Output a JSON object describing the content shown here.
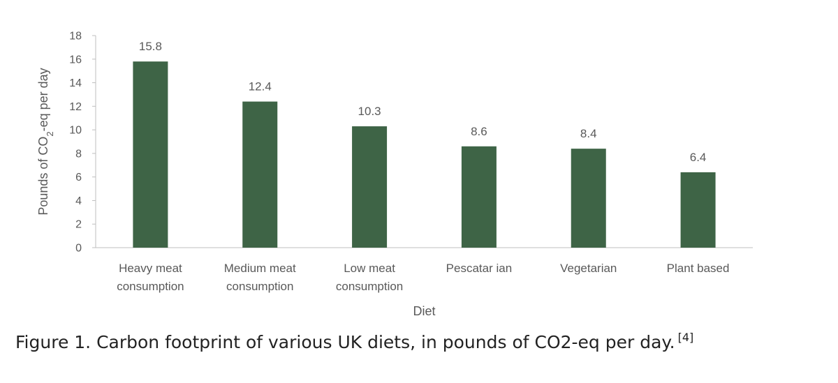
{
  "chart_data": {
    "type": "bar",
    "categories": [
      [
        "Heavy meat",
        "consumption"
      ],
      [
        "Medium meat",
        "consumption"
      ],
      [
        "Low meat",
        "consumption"
      ],
      [
        "Pescatar ian"
      ],
      [
        "Vegetarian"
      ],
      [
        "Plant based"
      ]
    ],
    "values": [
      15.8,
      12.4,
      10.3,
      8.6,
      8.4,
      6.4
    ],
    "data_labels": [
      "15.8",
      "12.4",
      "10.3",
      "8.6",
      "8.4",
      "6.4"
    ],
    "xlabel": "Diet",
    "ylabel_main": "Pounds of CO",
    "ylabel_sub": "2",
    "ylabel_tail": "-eq per day",
    "ylim": [
      0,
      18
    ],
    "yticks": [
      0,
      2,
      4,
      6,
      8,
      10,
      12,
      14,
      16,
      18
    ],
    "bar_color": "#3e6446",
    "grid": false,
    "legend": "none"
  },
  "caption": {
    "text": "Figure 1. Carbon footprint of various UK diets, in pounds of CO2-eq per day.",
    "reference": "[4]"
  }
}
